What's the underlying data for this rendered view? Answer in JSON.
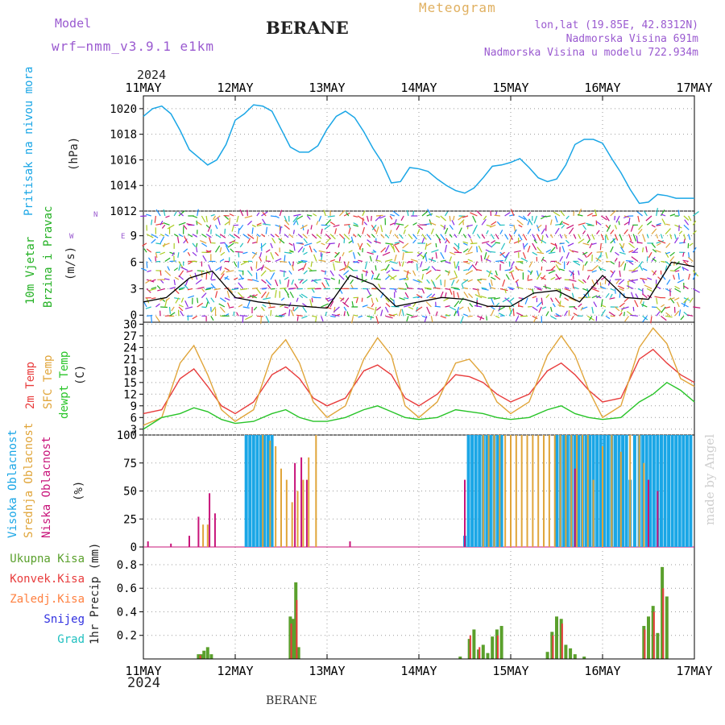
{
  "header": {
    "model_label": "Model",
    "model_name": "wrf–nmm_v3.9.1 e1km",
    "station": "BERANE",
    "product": "Meteogram",
    "coords": "lon,lat (19.85E, 42.8312N)",
    "elevation": "Nadmorska Visina 691m",
    "model_elevation": "Nadmorska Visina u modelu 722.934m",
    "footer_station": "BERANE",
    "credit": "made by Angel"
  },
  "time_axis": {
    "year": "2024",
    "ticks": [
      "11MAY",
      "12MAY",
      "13MAY",
      "14MAY",
      "15MAY",
      "16MAY",
      "17MAY"
    ]
  },
  "colors": {
    "pressure": "#1aa6e6",
    "wind_label": "#22b022",
    "t2m": "#e83c3c",
    "sfc": "#e0a53a",
    "dew": "#28c428",
    "cloud_high": "#1aa6e6",
    "cloud_mid": "#e0a53a",
    "cloud_low": "#c8147a",
    "precip_total": "#5aa02c",
    "precip_conv": "#e83c3c",
    "precip_strat": "#ff8040",
    "snow": "#3030e0",
    "graupel": "#20c0c0",
    "header_purple": "#9a5ad0",
    "header_gold": "#e0b060"
  },
  "chart_data": [
    {
      "type": "line",
      "ylabel": [
        "Pritisak na nivou mora",
        "(hPa)"
      ],
      "ylim": [
        1012,
        1021
      ],
      "yticks": [
        1012,
        1014,
        1016,
        1018,
        1020
      ],
      "x_unit": "days since 11MAY 00Z",
      "x": [
        0,
        0.1,
        0.2,
        0.3,
        0.4,
        0.5,
        0.6,
        0.7,
        0.8,
        0.9,
        1.0,
        1.1,
        1.2,
        1.3,
        1.4,
        1.5,
        1.6,
        1.7,
        1.8,
        1.9,
        2.0,
        2.1,
        2.2,
        2.3,
        2.4,
        2.5,
        2.6,
        2.7,
        2.8,
        2.9,
        3.0,
        3.1,
        3.2,
        3.3,
        3.4,
        3.5,
        3.6,
        3.7,
        3.8,
        3.9,
        4.0,
        4.1,
        4.2,
        4.3,
        4.4,
        4.5,
        4.6,
        4.7,
        4.8,
        4.9,
        5.0,
        5.1,
        5.2,
        5.3,
        5.4,
        5.5,
        5.6,
        5.7,
        5.8,
        5.9,
        6.0
      ],
      "series": [
        {
          "name": "Pritisak na nivou mora",
          "values": [
            1019.4,
            1020.0,
            1020.2,
            1019.6,
            1018.3,
            1016.8,
            1016.2,
            1015.6,
            1016.0,
            1017.2,
            1019.1,
            1019.6,
            1020.3,
            1020.2,
            1019.8,
            1018.4,
            1017.0,
            1016.6,
            1016.6,
            1017.1,
            1018.4,
            1019.4,
            1019.8,
            1019.3,
            1018.2,
            1016.9,
            1015.8,
            1014.2,
            1014.3,
            1015.4,
            1015.3,
            1015.1,
            1014.5,
            1014.0,
            1013.6,
            1013.4,
            1013.8,
            1014.6,
            1015.5,
            1015.6,
            1015.8,
            1016.1,
            1015.4,
            1014.6,
            1014.3,
            1014.5,
            1015.6,
            1017.2,
            1017.6,
            1017.6,
            1017.3,
            1016.1,
            1015.0,
            1013.7,
            1012.6,
            1012.7,
            1013.3,
            1013.2,
            1013.0,
            1013.0,
            1013.0
          ]
        }
      ]
    },
    {
      "type": "line",
      "ylabel": [
        "10m Vjetar",
        "Brzina i Pravac",
        "(m/s)"
      ],
      "direction_key": [
        "N",
        "E",
        "W"
      ],
      "ylim": [
        -0.8,
        11.8
      ],
      "yticks": [
        0,
        3,
        6,
        9
      ],
      "x": [
        0,
        0.25,
        0.5,
        0.75,
        1.0,
        1.25,
        1.5,
        1.75,
        2.0,
        2.25,
        2.5,
        2.75,
        3.0,
        3.25,
        3.5,
        3.75,
        4.0,
        4.25,
        4.5,
        4.75,
        5.0,
        5.25,
        5.5,
        5.75,
        6.0
      ],
      "series": [
        {
          "name": "10m Vjetar",
          "values": [
            1.5,
            2.0,
            4.2,
            5.0,
            2.0,
            1.5,
            1.2,
            1.0,
            0.8,
            4.5,
            3.5,
            1.0,
            1.5,
            2.0,
            1.8,
            1.0,
            1.0,
            2.5,
            2.8,
            1.5,
            4.5,
            2.0,
            1.8,
            6.0,
            5.5
          ]
        }
      ]
    },
    {
      "type": "line",
      "ylabel": [
        "2m Temp",
        "SFC Temp",
        "dewpt Temp",
        "(C)"
      ],
      "ylim": [
        1.5,
        30.5
      ],
      "yticks": [
        3,
        6,
        9,
        12,
        15,
        18,
        21,
        24,
        27,
        30
      ],
      "x": [
        0,
        0.2,
        0.4,
        0.55,
        0.7,
        0.85,
        1.0,
        1.2,
        1.4,
        1.55,
        1.7,
        1.85,
        2.0,
        2.2,
        2.4,
        2.55,
        2.7,
        2.85,
        3.0,
        3.2,
        3.4,
        3.55,
        3.7,
        3.85,
        4.0,
        4.2,
        4.4,
        4.55,
        4.7,
        4.85,
        5.0,
        5.2,
        5.4,
        5.55,
        5.7,
        5.85,
        6.0
      ],
      "series": [
        {
          "name": "2m Temp",
          "values": [
            7,
            8,
            16,
            18.5,
            14,
            9,
            7,
            10,
            17,
            19,
            16,
            11,
            9,
            11,
            18,
            19.5,
            17,
            11,
            9,
            12,
            17,
            16.5,
            15,
            12,
            10,
            12,
            18,
            20,
            17,
            13,
            10,
            11,
            21,
            23.5,
            20,
            17,
            15
          ]
        },
        {
          "name": "SFC Temp",
          "values": [
            4,
            6,
            20,
            24.5,
            17,
            8,
            5,
            8,
            22,
            26,
            20,
            10,
            6,
            9,
            21,
            26.5,
            22,
            9,
            6,
            10,
            20,
            21,
            17,
            10,
            7,
            10,
            22,
            27,
            22,
            13,
            6,
            9,
            24,
            29,
            25,
            16,
            14
          ]
        },
        {
          "name": "dewpt Temp",
          "values": [
            3,
            6,
            7,
            8.5,
            7.5,
            5.5,
            4.5,
            5,
            7,
            8,
            6,
            5,
            5,
            6,
            8,
            9,
            7.5,
            6,
            5.5,
            6,
            8,
            7.5,
            7,
            6,
            5.5,
            6,
            8,
            9,
            7,
            6,
            5.5,
            6,
            10,
            12,
            15,
            13,
            10
          ]
        }
      ]
    },
    {
      "type": "bar",
      "ylabel": [
        "Visoka Oblacnost",
        "Srednja Oblacnost",
        "Niska Oblacnost",
        "(%)"
      ],
      "ylim": [
        0,
        100
      ],
      "yticks": [
        0,
        25,
        50,
        75,
        100
      ],
      "series": [
        {
          "name": "Visoka Oblacnost",
          "x": [
            1.12,
            1.16,
            1.2,
            1.24,
            1.28,
            1.32,
            1.36,
            1.4,
            3.5,
            3.54,
            3.58,
            3.62,
            3.66,
            3.7,
            3.74,
            3.78,
            3.82,
            3.86,
            3.9,
            4.5,
            4.54,
            4.58,
            4.62,
            4.66,
            4.7,
            4.74,
            4.78,
            4.82,
            4.86,
            4.9,
            4.94,
            4.98,
            5.02,
            5.06,
            5.1,
            5.14,
            5.18,
            5.22,
            5.26,
            5.3,
            5.35,
            5.4,
            5.44,
            5.48,
            5.52,
            5.56,
            5.6,
            5.64,
            5.68,
            5.72,
            5.76,
            5.8,
            5.84,
            5.88,
            5.92,
            5.96
          ],
          "values": [
            100,
            100,
            100,
            100,
            100,
            100,
            100,
            100,
            10,
            100,
            100,
            100,
            100,
            100,
            100,
            100,
            100,
            100,
            100,
            100,
            100,
            100,
            100,
            100,
            100,
            100,
            100,
            100,
            100,
            100,
            100,
            100,
            100,
            100,
            100,
            100,
            100,
            100,
            100,
            60,
            100,
            100,
            100,
            100,
            100,
            100,
            100,
            100,
            100,
            100,
            100,
            100,
            100,
            100,
            100,
            100
          ]
        },
        {
          "name": "Srednja Oblacnost",
          "x": [
            0.65,
            0.7,
            1.3,
            1.38,
            1.44,
            1.5,
            1.56,
            1.62,
            1.68,
            1.74,
            1.8,
            1.88,
            3.7,
            3.76,
            3.82,
            3.88,
            3.94,
            4.0,
            4.06,
            4.12,
            4.18,
            4.24,
            4.3,
            4.36,
            4.42,
            4.48,
            4.54,
            4.6,
            4.66,
            4.72,
            4.78,
            4.84,
            4.9,
            5.0,
            5.1,
            5.2,
            5.3,
            5.4,
            5.45
          ],
          "values": [
            20,
            20,
            100,
            95,
            90,
            70,
            60,
            40,
            50,
            60,
            80,
            100,
            100,
            100,
            100,
            100,
            100,
            100,
            100,
            100,
            100,
            100,
            100,
            100,
            100,
            100,
            100,
            100,
            100,
            100,
            100,
            100,
            60,
            90,
            100,
            85,
            100,
            100,
            75
          ]
        },
        {
          "name": "Niska Oblacnost",
          "x": [
            0.05,
            0.3,
            0.5,
            0.6,
            0.72,
            0.78,
            1.65,
            1.72,
            1.78,
            2.25,
            3.5,
            4.7,
            5.5,
            5.6
          ],
          "values": [
            5,
            3,
            10,
            27,
            48,
            30,
            75,
            80,
            60,
            5,
            60,
            70,
            60,
            50
          ]
        }
      ]
    },
    {
      "type": "bar",
      "ylabel": [
        "Ukupna Kisa",
        "Konvek.Kisa",
        "Zaledj.Kisa",
        "Snijeg",
        "Grad",
        "1hr Precip (mm)"
      ],
      "ylim": [
        0,
        0.95
      ],
      "yticks": [
        0.2,
        0.4,
        0.6,
        0.8
      ],
      "series": [
        {
          "name": "Ukupna Kisa",
          "x": [
            0.6,
            0.63,
            0.66,
            0.7,
            0.74,
            1.6,
            1.63,
            1.66,
            1.69,
            3.45,
            3.55,
            3.6,
            3.65,
            3.7,
            3.75,
            3.8,
            3.85,
            3.9,
            4.4,
            4.45,
            4.5,
            4.55,
            4.6,
            4.65,
            4.7,
            4.8,
            5.45,
            5.5,
            5.55,
            5.6,
            5.65,
            5.7
          ],
          "values": [
            0.04,
            0.04,
            0.07,
            0.1,
            0.04,
            0.36,
            0.34,
            0.65,
            0.1,
            0.02,
            0.17,
            0.25,
            0.08,
            0.12,
            0.05,
            0.19,
            0.25,
            0.28,
            0.06,
            0.23,
            0.36,
            0.34,
            0.12,
            0.09,
            0.04,
            0.02,
            0.28,
            0.36,
            0.45,
            0.22,
            0.78,
            0.53
          ]
        },
        {
          "name": "Konvek.Kisa",
          "x": [
            0.62,
            1.61,
            1.67,
            3.56,
            3.66,
            3.86,
            4.46,
            4.56,
            5.46,
            5.56,
            5.66
          ],
          "values": [
            0.03,
            0.3,
            0.5,
            0.2,
            0.1,
            0.2,
            0.2,
            0.3,
            0.25,
            0.4,
            0.6
          ]
        }
      ]
    }
  ]
}
